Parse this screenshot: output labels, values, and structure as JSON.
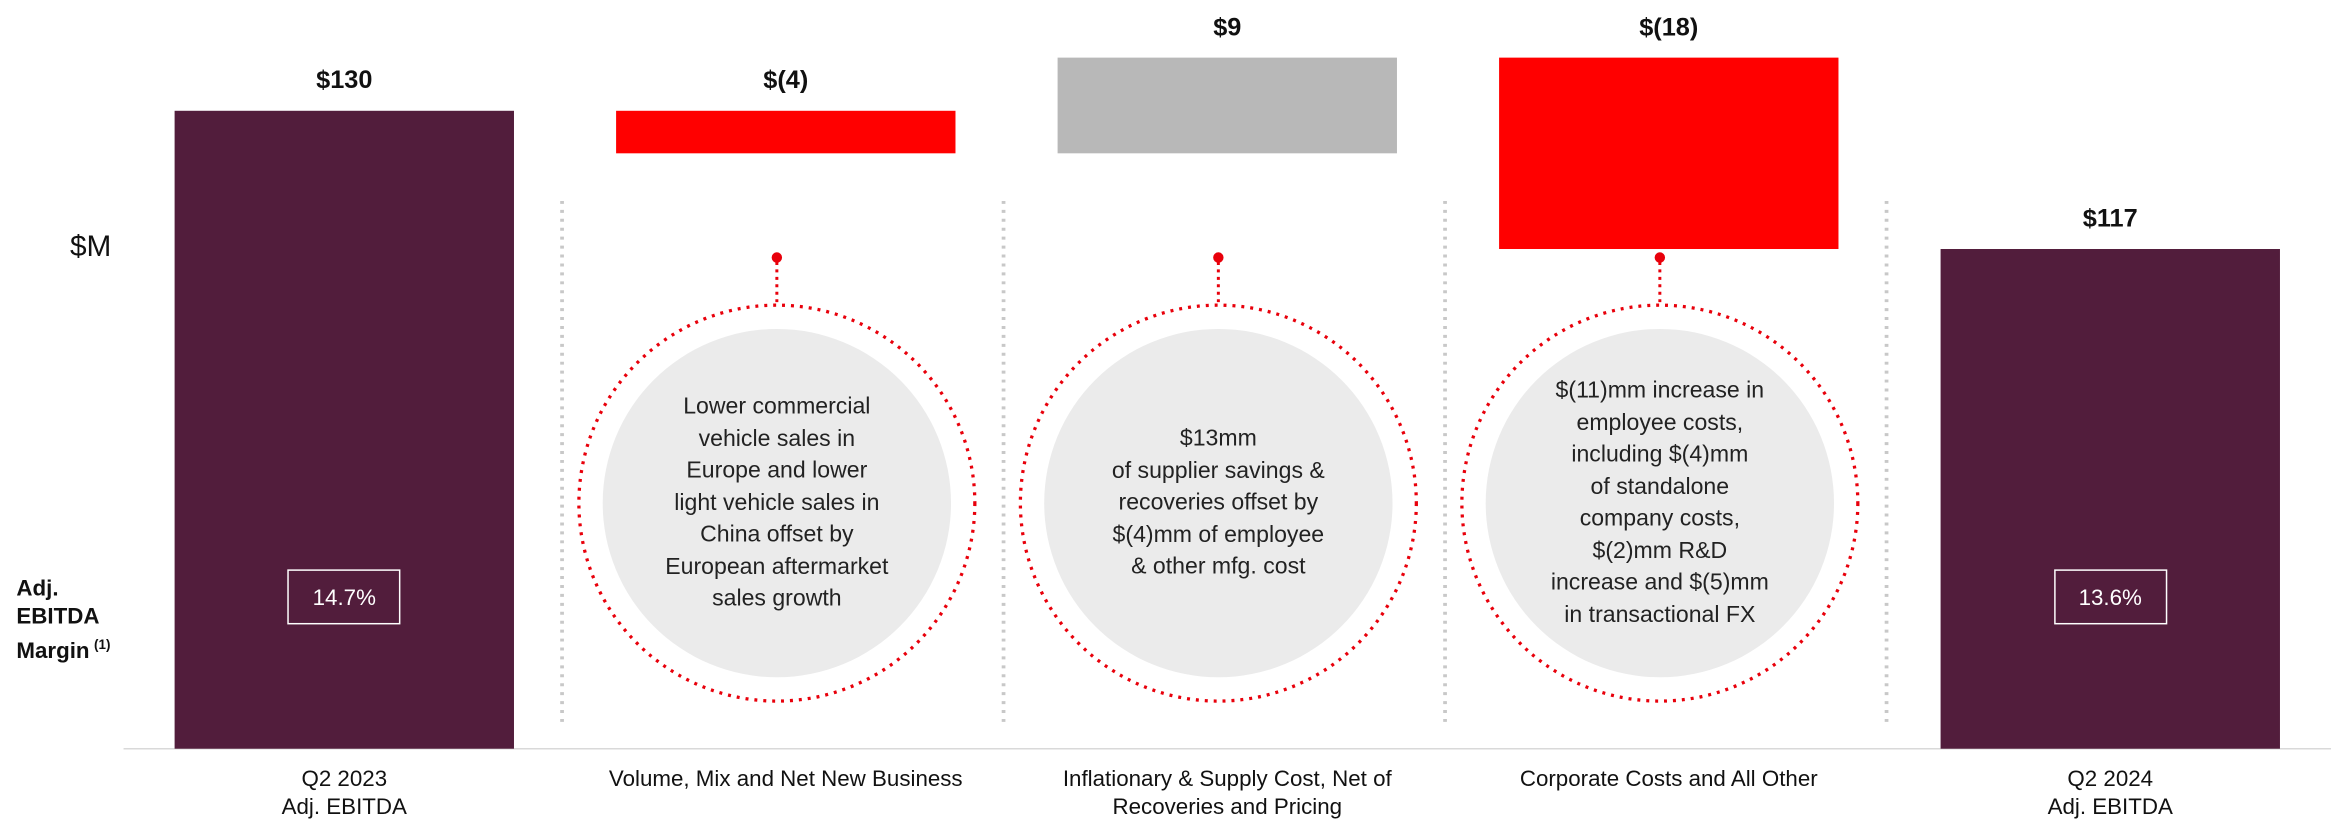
{
  "chart_data": {
    "type": "waterfall",
    "unit_label": "$M",
    "margin_title": "Adj.\nEBITDA\nMargin",
    "margin_title_note": "(1)",
    "categories": [
      "Q2 2023\nAdj. EBITDA",
      "Volume, Mix and Net New Business",
      "Inflationary & Supply Cost, Net of\nRecoveries and Pricing",
      "Corporate Costs and All Other",
      "Q2 2024\nAdj. EBITDA"
    ],
    "values": [
      130,
      -4,
      9,
      -18,
      117
    ],
    "value_labels": [
      "$130",
      "$(4)",
      "$9",
      "$(18)",
      "$117"
    ],
    "is_total": [
      true,
      false,
      false,
      false,
      true
    ],
    "colors": [
      "#521d3c",
      "#ff0000",
      "#b8b8b8",
      "#ff0000",
      "#521d3c"
    ],
    "margin_labels": [
      "14.7%",
      null,
      null,
      null,
      "13.6%"
    ],
    "annotations": [
      null,
      "Lower commercial\nvehicle sales in\nEurope and lower\nlight vehicle sales in\nChina offset by\nEuropean aftermarket\nsales growth",
      "$13mm\nof supplier savings &\nrecoveries offset by\n$(4)mm of employee\n& other mfg. cost",
      "$(11)mm increase in\nemployee costs,\nincluding $(4)mm\nof standalone\ncompany costs,\n$(2)mm R&D\nincrease and $(5)mm\nin transactional FX",
      null
    ],
    "ylim": [
      70,
      140
    ]
  }
}
